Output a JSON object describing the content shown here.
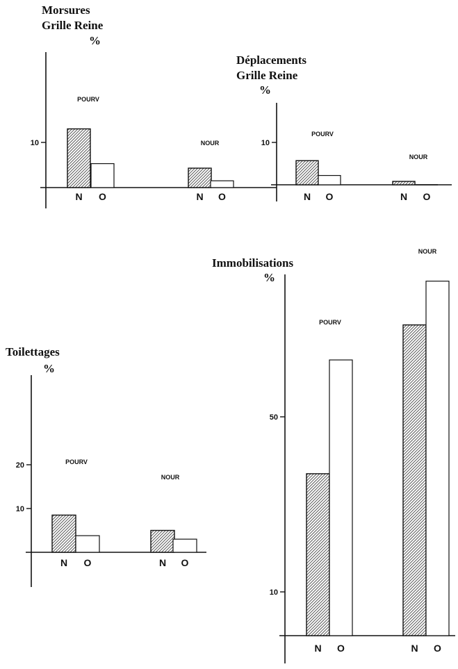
{
  "hatch_color": "#444444",
  "chart_data": [
    {
      "type": "bar",
      "title": [
        "Morsures",
        "Grille Reine"
      ],
      "ylabel": "%",
      "ylim": [
        0,
        14
      ],
      "yticks": [
        10
      ],
      "groups": [
        "POURV",
        "NOUR"
      ],
      "categories": [
        "N",
        "O"
      ],
      "values": [
        [
          13,
          5.3
        ],
        [
          4.3,
          1.5
        ]
      ],
      "fills": [
        "hatched",
        "white"
      ]
    },
    {
      "type": "bar",
      "title": [
        "Déplacements",
        "Grille Reine"
      ],
      "ylabel": "%",
      "ylim": [
        0,
        14
      ],
      "yticks": [
        10
      ],
      "groups": [
        "POURV",
        "NOUR"
      ],
      "categories": [
        "N",
        "O"
      ],
      "values": [
        [
          5.7,
          2.2
        ],
        [
          0.8,
          0
        ]
      ],
      "fills": [
        "hatched",
        "white"
      ]
    },
    {
      "type": "bar",
      "title": [
        "Toilettages"
      ],
      "ylabel": "%",
      "ylim": [
        0,
        30
      ],
      "yticks": [
        10,
        20
      ],
      "groups": [
        "POURV",
        "NOUR"
      ],
      "categories": [
        "N",
        "O"
      ],
      "values": [
        [
          8.5,
          3.8
        ],
        [
          5,
          3
        ]
      ],
      "fills": [
        "hatched",
        "white"
      ]
    },
    {
      "type": "bar",
      "title": [
        "Immobilisations"
      ],
      "ylabel": "%",
      "ylim": [
        0,
        85
      ],
      "yticks": [
        10,
        50
      ],
      "groups": [
        "POURV",
        "NOUR"
      ],
      "categories": [
        "N",
        "O"
      ],
      "values": [
        [
          37,
          63
        ],
        [
          71,
          81
        ]
      ],
      "fills": [
        "hatched",
        "white"
      ]
    }
  ]
}
